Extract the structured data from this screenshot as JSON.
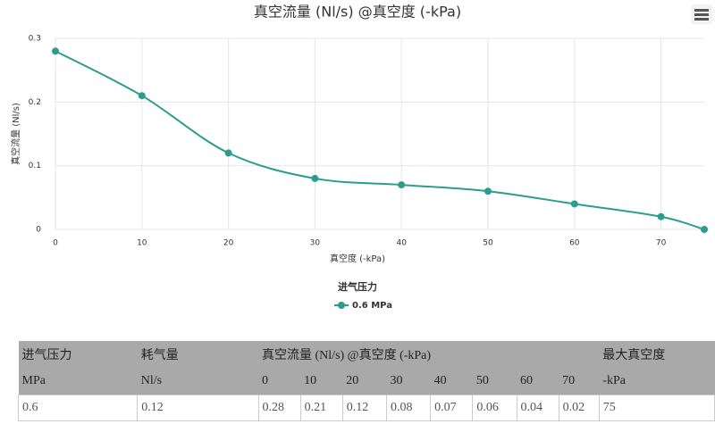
{
  "chart_data": {
    "type": "line",
    "title": "真空流量 (Nl/s) @真空度 (-kPa)",
    "x_label": "真空度 (-kPa)",
    "y_label": "真空流量 (Nl/s)",
    "x": [
      0,
      10,
      20,
      30,
      40,
      50,
      60,
      70,
      75
    ],
    "series": [
      {
        "name": "0.6 MPa",
        "color": "#2a9d8f",
        "values": [
          0.28,
          0.21,
          0.12,
          0.08,
          0.07,
          0.06,
          0.04,
          0.02,
          0
        ]
      }
    ],
    "legend_title": "进气压力",
    "legend": "bottom",
    "xlim": [
      0,
      75
    ],
    "xticks": [
      0,
      10,
      20,
      30,
      40,
      50,
      60,
      70
    ],
    "ylim": [
      0,
      0.3
    ],
    "yticks": [
      0,
      0.1,
      0.2,
      0.3
    ],
    "grid": true
  },
  "table": {
    "header": [
      "进气压力",
      "耗气量",
      "真空流量 (Nl/s) @真空度 (-kPa)",
      "最大真空度"
    ],
    "subheader": [
      "MPa",
      "Nl/s",
      "0",
      "10",
      "20",
      "30",
      "40",
      "50",
      "60",
      "70",
      "-kPa"
    ],
    "rows": [
      [
        "0.6",
        "0.12",
        "0.28",
        "0.21",
        "0.12",
        "0.08",
        "0.07",
        "0.06",
        "0.04",
        "0.02",
        "75"
      ]
    ]
  }
}
